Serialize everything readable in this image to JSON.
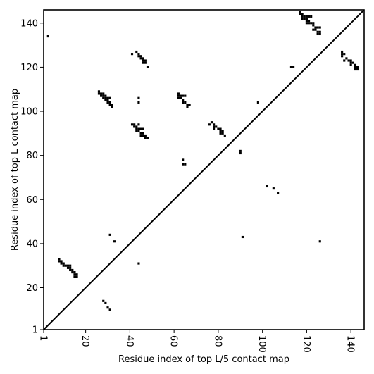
{
  "chart_data": {
    "type": "scatter",
    "title": "",
    "xlabel": "Residue index of top L/5 contact map",
    "ylabel": "Residue index of top L contact map",
    "xlim": [
      1,
      146
    ],
    "ylim": [
      1,
      146
    ],
    "x_ticks": [
      1,
      20,
      40,
      60,
      80,
      100,
      120,
      140
    ],
    "y_ticks": [
      1,
      20,
      40,
      60,
      80,
      100,
      120,
      140
    ],
    "x_tick_labels": [
      "1",
      "20",
      "40",
      "60",
      "80",
      "100",
      "120",
      "140"
    ],
    "y_tick_labels": [
      "1",
      "20",
      "40",
      "60",
      "80",
      "100",
      "120",
      "140"
    ],
    "x_tick_rotation": -90,
    "diagonal": true,
    "grid": false,
    "marker": "square",
    "color": "#000000",
    "series": [
      {
        "values": [
          [
            3,
            134
          ],
          [
            43,
            127
          ],
          [
            44,
            126
          ],
          [
            44,
            125
          ],
          [
            45,
            125
          ],
          [
            45,
            124
          ],
          [
            46,
            124
          ],
          [
            46,
            123
          ],
          [
            47,
            123
          ],
          [
            46,
            122
          ],
          [
            47,
            122
          ],
          [
            48,
            120
          ],
          [
            41,
            126
          ],
          [
            26,
            109
          ],
          [
            26,
            108
          ],
          [
            27,
            108
          ],
          [
            28,
            108
          ],
          [
            29,
            107
          ],
          [
            27,
            107
          ],
          [
            28,
            107
          ],
          [
            28,
            106
          ],
          [
            29,
            106
          ],
          [
            30,
            106
          ],
          [
            31,
            106
          ],
          [
            29,
            105
          ],
          [
            30,
            105
          ],
          [
            30,
            104
          ],
          [
            31,
            104
          ],
          [
            31,
            103
          ],
          [
            32,
            103
          ],
          [
            32,
            102
          ],
          [
            44,
            106
          ],
          [
            44,
            104
          ],
          [
            62,
            108
          ],
          [
            62,
            107
          ],
          [
            63,
            107
          ],
          [
            64,
            107
          ],
          [
            65,
            107
          ],
          [
            62,
            106
          ],
          [
            63,
            106
          ],
          [
            64,
            105
          ],
          [
            64,
            104
          ],
          [
            65,
            104
          ],
          [
            66,
            103
          ],
          [
            67,
            103
          ],
          [
            66,
            102
          ],
          [
            41,
            94
          ],
          [
            42,
            94
          ],
          [
            43,
            93
          ],
          [
            44,
            94
          ],
          [
            42,
            93
          ],
          [
            44,
            92
          ],
          [
            45,
            92
          ],
          [
            46,
            92
          ],
          [
            43,
            92
          ],
          [
            43,
            91
          ],
          [
            44,
            91
          ],
          [
            45,
            90
          ],
          [
            46,
            90
          ],
          [
            45,
            89
          ],
          [
            46,
            89
          ],
          [
            47,
            89
          ],
          [
            47,
            88
          ],
          [
            48,
            88
          ],
          [
            76,
            94
          ],
          [
            77,
            95
          ],
          [
            78,
            94
          ],
          [
            78,
            93
          ],
          [
            79,
            93
          ],
          [
            78,
            92
          ],
          [
            80,
            92
          ],
          [
            81,
            92
          ],
          [
            81,
            91
          ],
          [
            82,
            91
          ],
          [
            81,
            90
          ],
          [
            82,
            90
          ],
          [
            83,
            89
          ],
          [
            64,
            78
          ],
          [
            64,
            76
          ],
          [
            65,
            76
          ],
          [
            90,
            82
          ],
          [
            90,
            81
          ],
          [
            8,
            33
          ],
          [
            8,
            32
          ],
          [
            9,
            32
          ],
          [
            9,
            31
          ],
          [
            10,
            31
          ],
          [
            10,
            30
          ],
          [
            11,
            30
          ],
          [
            12,
            30
          ],
          [
            13,
            30
          ],
          [
            12,
            29
          ],
          [
            13,
            29
          ],
          [
            13,
            28
          ],
          [
            14,
            28
          ],
          [
            14,
            27
          ],
          [
            15,
            27
          ],
          [
            15,
            26
          ],
          [
            16,
            26
          ],
          [
            15,
            25
          ],
          [
            16,
            25
          ],
          [
            31,
            44
          ],
          [
            33,
            41
          ],
          [
            44,
            31
          ],
          [
            28,
            14
          ],
          [
            29,
            13
          ],
          [
            30,
            11
          ],
          [
            31,
            10
          ],
          [
            91,
            43
          ],
          [
            98,
            104
          ],
          [
            102,
            66
          ],
          [
            105,
            65
          ],
          [
            107,
            63
          ],
          [
            113,
            120
          ],
          [
            114,
            120
          ],
          [
            126,
            41
          ],
          [
            117,
            145
          ],
          [
            117,
            144
          ],
          [
            118,
            144
          ],
          [
            118,
            143
          ],
          [
            119,
            143
          ],
          [
            120,
            143
          ],
          [
            121,
            143
          ],
          [
            122,
            143
          ],
          [
            118,
            142
          ],
          [
            119,
            142
          ],
          [
            120,
            142
          ],
          [
            120,
            141
          ],
          [
            121,
            141
          ],
          [
            120,
            140
          ],
          [
            121,
            140
          ],
          [
            122,
            140
          ],
          [
            123,
            140
          ],
          [
            123,
            139
          ],
          [
            124,
            138
          ],
          [
            125,
            138
          ],
          [
            126,
            138
          ],
          [
            123,
            137
          ],
          [
            124,
            137
          ],
          [
            125,
            136
          ],
          [
            126,
            136
          ],
          [
            125,
            135
          ],
          [
            126,
            135
          ],
          [
            136,
            127
          ],
          [
            136,
            126
          ],
          [
            137,
            126
          ],
          [
            136,
            125
          ],
          [
            138,
            124
          ],
          [
            137,
            123
          ],
          [
            139,
            123
          ],
          [
            140,
            123
          ],
          [
            140,
            122
          ],
          [
            141,
            122
          ],
          [
            140,
            121
          ],
          [
            142,
            121
          ],
          [
            142,
            120
          ],
          [
            143,
            120
          ],
          [
            142,
            119
          ],
          [
            143,
            119
          ]
        ]
      }
    ]
  }
}
